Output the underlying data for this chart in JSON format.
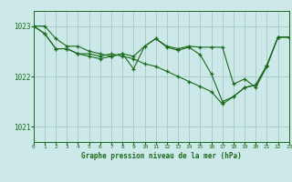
{
  "background_color": "#cce8e8",
  "grid_color": "#aacccc",
  "line_color": "#1a6b1a",
  "title": "Graphe pression niveau de la mer (hPa)",
  "xlim": [
    0,
    23
  ],
  "ylim": [
    1020.7,
    1023.3
  ],
  "yticks": [
    1021,
    1022,
    1023
  ],
  "xtick_labels": [
    "0",
    "1",
    "2",
    "3",
    "4",
    "5",
    "6",
    "7",
    "8",
    "9",
    "10",
    "11",
    "12",
    "13",
    "14",
    "15",
    "16",
    "17",
    "18",
    "19",
    "20",
    "21",
    "22",
    "23"
  ],
  "series": [
    [
      1023.0,
      1023.0,
      1022.75,
      1022.6,
      1022.6,
      1022.5,
      1022.45,
      1022.4,
      1022.45,
      1022.4,
      1022.6,
      1022.75,
      1022.6,
      1022.55,
      1022.6,
      1022.58,
      1022.58,
      1022.58,
      1021.85,
      1021.95,
      1021.78,
      1022.2,
      1022.78,
      1022.78
    ],
    [
      1023.0,
      1022.85,
      1022.55,
      1022.55,
      1022.45,
      1022.4,
      1022.35,
      1022.4,
      1022.45,
      1022.15,
      1022.6,
      1022.75,
      1022.58,
      1022.52,
      1022.58,
      1022.43,
      1022.05,
      1021.5,
      1021.6,
      1021.78,
      1021.83,
      1022.22,
      1022.78,
      1022.78
    ],
    [
      1023.0,
      1022.85,
      1022.55,
      1022.55,
      1022.45,
      1022.45,
      1022.4,
      1022.45,
      1022.4,
      1022.35,
      1022.25,
      1022.2,
      1022.1,
      1022.0,
      1021.9,
      1021.8,
      1021.7,
      1021.45,
      1021.6,
      1021.78,
      1021.83,
      1022.22,
      1022.78,
      1022.78
    ]
  ]
}
